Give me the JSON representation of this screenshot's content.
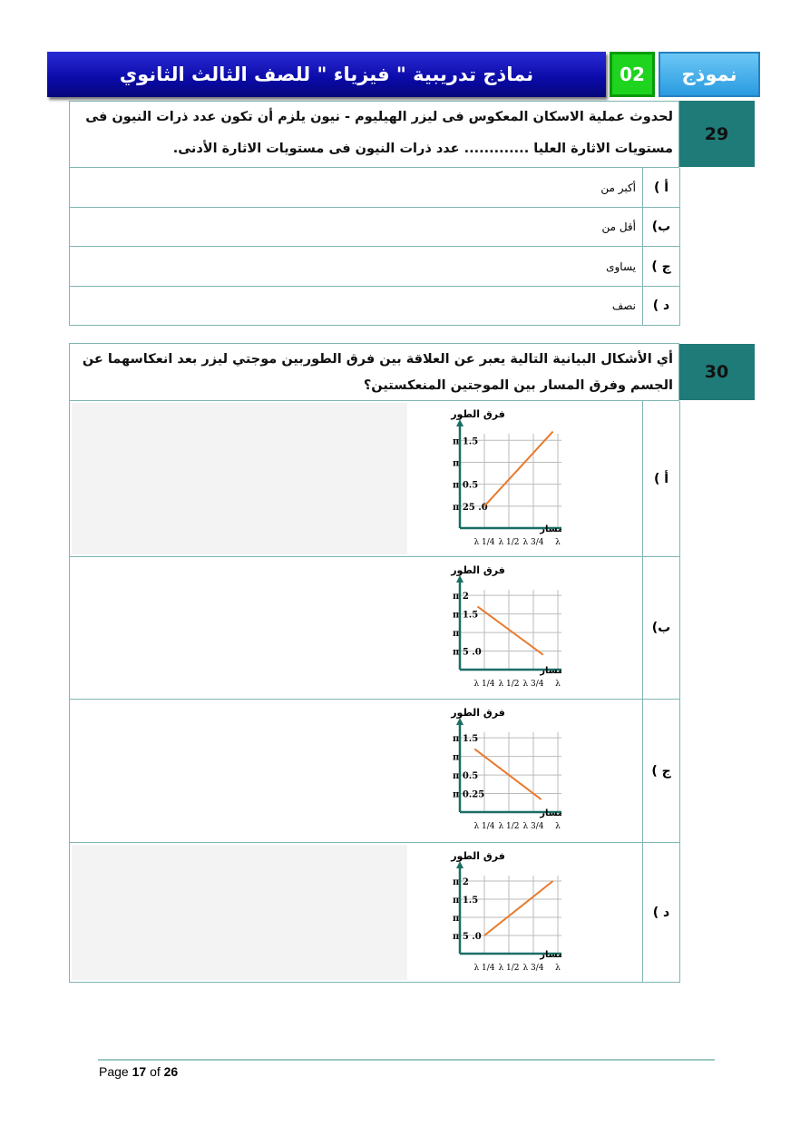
{
  "header": {
    "title": "نماذج تدريبية \" فيزياء \" للصف الثالث الثانوي",
    "model_number": "02",
    "model_label": "نموذج"
  },
  "questions": [
    {
      "number": "29",
      "text": "لحدوث عملية الاسكان المعكوس فى ليزر الهيليوم - نيون يلزم أن تكون عدد ذرات النيون فى مستويات الاثارة العليا ............. عدد ذرات النيون فى مستويات الاثارة الأدنى.",
      "options": [
        {
          "label": "أ )",
          "text": "أكبر من"
        },
        {
          "label": "ب)",
          "text": "أقل من"
        },
        {
          "label": "ج )",
          "text": "يساوى"
        },
        {
          "label": "د )",
          "text": "نصف"
        }
      ]
    },
    {
      "number": "30",
      "text": "أي الأشكال البيانية التالية يعبر عن العلاقة بين فرق الطوربين موجتي ليزر بعد انعكاسهما عن الجسم وفرق المسار بين الموجتين المنعكستين؟",
      "options": [
        {
          "label": "أ )"
        },
        {
          "label": "ب)"
        },
        {
          "label": "ج )"
        },
        {
          "label": "د )"
        }
      ]
    }
  ],
  "chart_data": [
    {
      "type": "line",
      "ylabel": "فرق الطور",
      "xlabel": "فرق المسار",
      "x_ticks": [
        "1/4 λ",
        "1/2 λ",
        "3/4 λ",
        "λ"
      ],
      "x_values": [
        0.25,
        0.5,
        0.75,
        1
      ],
      "y_ticks": [
        "0. 25 π",
        "0.5 π",
        "π",
        "1.5 π"
      ],
      "y_values": [
        0.25,
        0.5,
        1,
        1.5
      ],
      "line": [
        [
          0.25,
          0.25
        ],
        [
          0.95,
          1.7
        ]
      ],
      "color": "#e87a2c",
      "grid": true
    },
    {
      "type": "line",
      "ylabel": "فرق الطور",
      "xlabel": "فرق المسار",
      "x_ticks": [
        "1/4 λ",
        "1/2 λ",
        "3/4 λ",
        "λ"
      ],
      "x_values": [
        0.25,
        0.5,
        0.75,
        1
      ],
      "y_ticks": [
        "0. 5 π",
        "π",
        "1.5 π",
        "2 π"
      ],
      "y_values": [
        0.5,
        1,
        1.5,
        2
      ],
      "line": [
        [
          0.18,
          1.7
        ],
        [
          0.85,
          0.4
        ]
      ],
      "color": "#e87a2c",
      "grid": true
    },
    {
      "type": "line",
      "ylabel": "فرق الطور",
      "xlabel": "فرق المسار",
      "x_ticks": [
        "1/4 λ",
        "1/2 λ",
        "3/4 λ",
        "λ"
      ],
      "x_values": [
        0.25,
        0.5,
        0.75,
        1
      ],
      "y_ticks": [
        "0.25 π",
        "0.5 π",
        "π",
        "1.5 π"
      ],
      "y_values": [
        0.25,
        0.5,
        1,
        1.5
      ],
      "line": [
        [
          0.15,
          1.2
        ],
        [
          0.83,
          0.17
        ]
      ],
      "color": "#e87a2c",
      "grid": true
    },
    {
      "type": "line",
      "ylabel": "فرق الطور",
      "xlabel": "فرق المسار",
      "x_ticks": [
        "1/4 λ",
        "1/2 λ",
        "3/4 λ",
        "λ"
      ],
      "x_values": [
        0.25,
        0.5,
        0.75,
        1
      ],
      "y_ticks": [
        "0. 5 π",
        "π",
        "1.5 π",
        "2 π"
      ],
      "y_values": [
        0.5,
        1,
        1.5,
        2
      ],
      "line": [
        [
          0.25,
          0.5
        ],
        [
          0.95,
          2
        ]
      ],
      "color": "#e87a2c",
      "grid": true
    }
  ],
  "footer": {
    "page_word": "Page",
    "page": "17",
    "of_word": "of",
    "total": "26"
  }
}
